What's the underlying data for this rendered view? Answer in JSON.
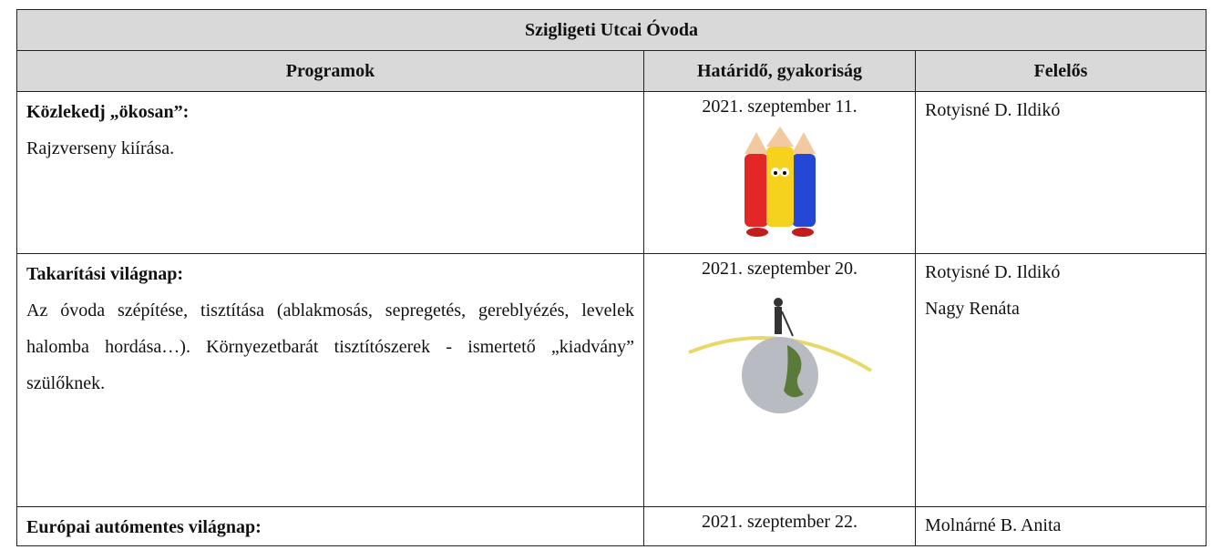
{
  "table": {
    "title": "Szigligeti Utcai Óvoda",
    "headers": [
      "Programok",
      "Határidő, gyakoriság",
      "Felelős"
    ],
    "rows": [
      {
        "program_title": "Közlekedj „ökosan”:",
        "program_text": "Rajzverseny kiírása.",
        "deadline": "2021. szeptember 11.",
        "responsible": [
          "Rotyisné D. Ildikó"
        ]
      },
      {
        "program_title": "Takarítási világnap:",
        "program_text": "Az óvoda szépítése, tisztítása (ablakmosás, sepregetés, gereblyézés, levelek halomba hordása…). Környezetbarát tisztítószerek - ismertető „kiadvány” szülőknek.",
        "deadline": "2021. szeptember 20.",
        "responsible": [
          "Rotyisné D. Ildikó",
          "Nagy Renáta"
        ]
      },
      {
        "program_title": "Európai autómentes világnap:",
        "program_text": null,
        "deadline": "2021. szeptember 22.",
        "responsible": [
          "Molnárné B. Anita"
        ]
      }
    ]
  }
}
